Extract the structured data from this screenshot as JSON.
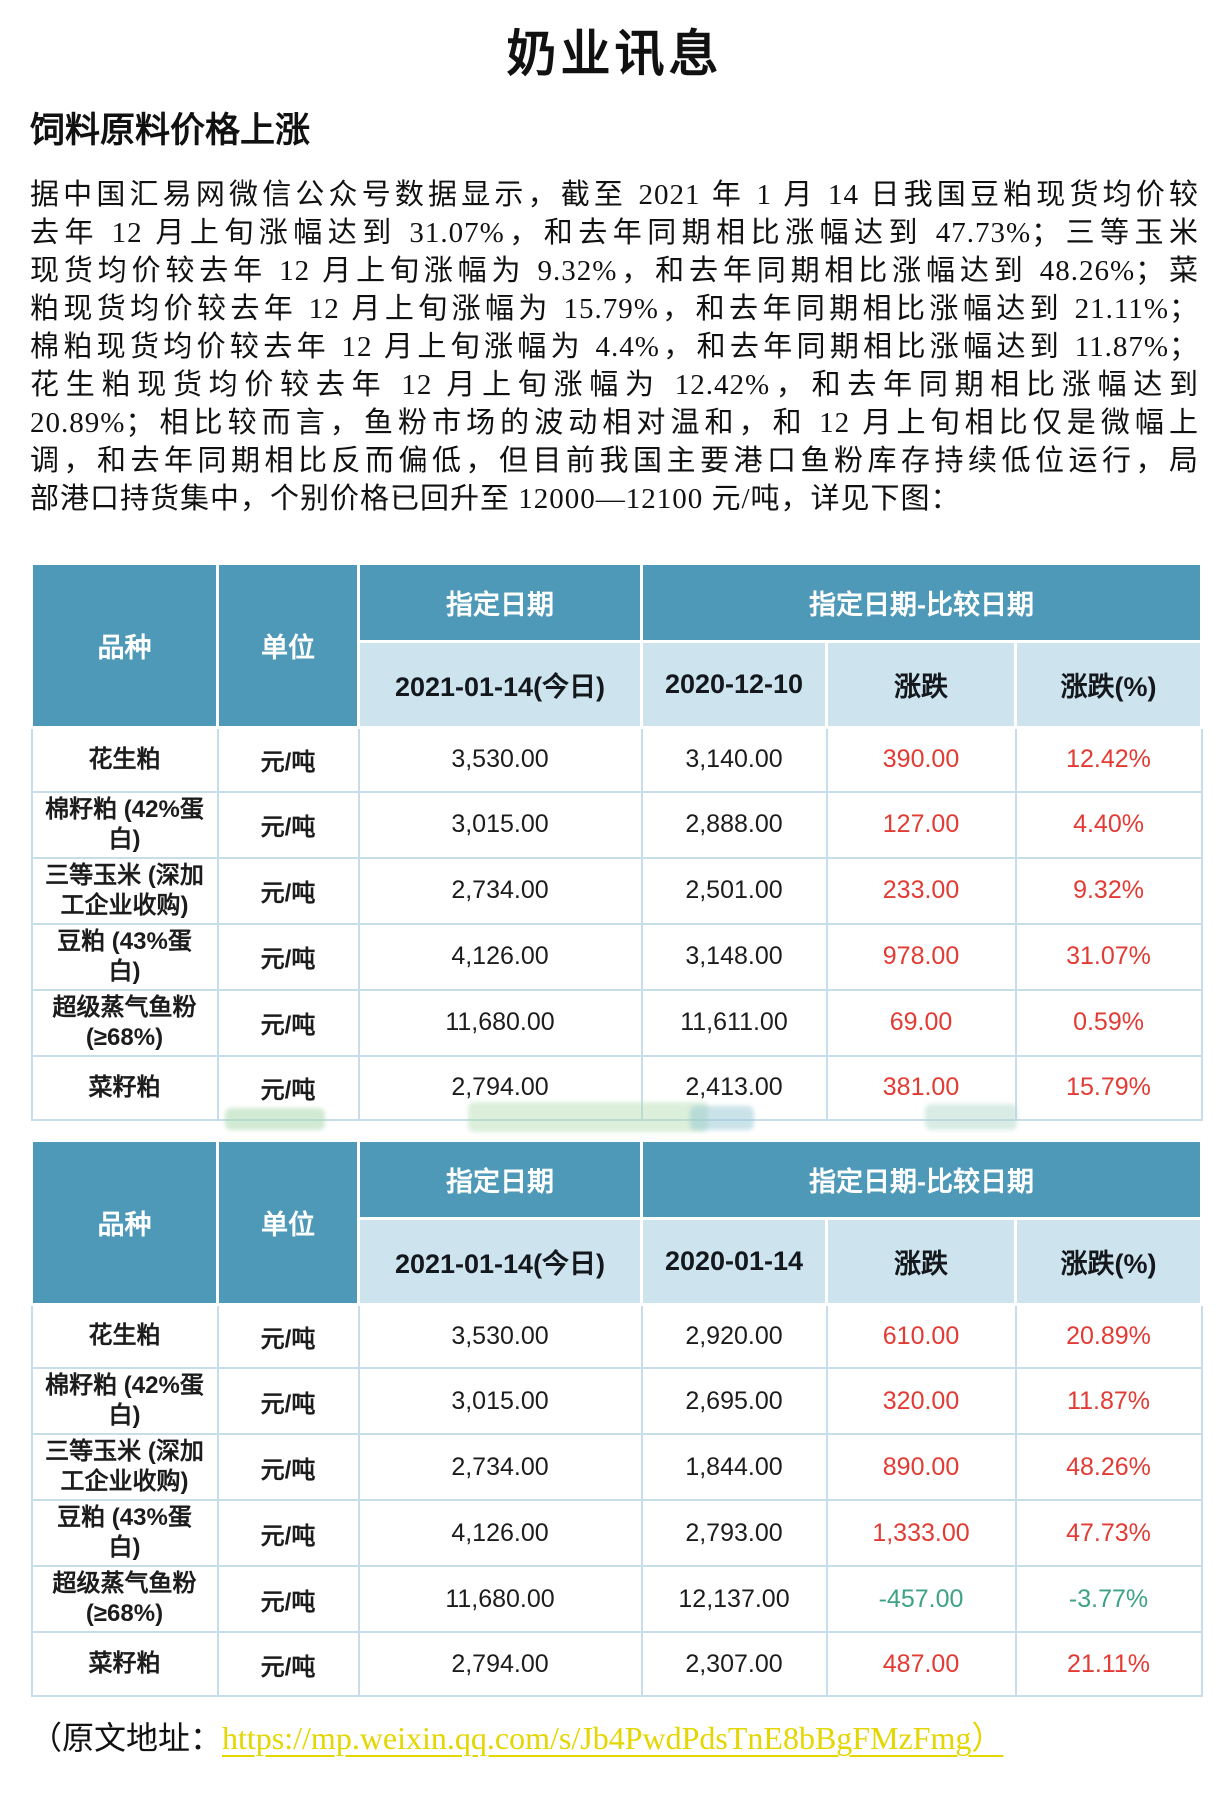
{
  "page": {
    "title": "奶业讯息",
    "section_heading": "饲料原料价格上涨"
  },
  "body": {
    "lines": [
      "据中国汇易网微信公众号数据显示，截至 2021 年 1 月 14 日我国豆粕现货均价较",
      "去年 12 月上旬涨幅达到 31.07%，和去年同期相比涨幅达到 47.73%；三等玉米",
      "现货均价较去年 12 月上旬涨幅为 9.32%，和去年同期相比涨幅达到 48.26%；菜",
      "粕现货均价较去年 12 月上旬涨幅为 15.79%，和去年同期相比涨幅达到 21.11%；",
      "棉粕现货均价较去年 12 月上旬涨幅为 4.4%，和去年同期相比涨幅达到 11.87%；",
      "花生粕现货均价较去年 12 月上旬涨幅为 12.42%，和去年同期相比涨幅达到",
      "20.89%；相比较而言，鱼粉市场的波动相对温和，和 12 月上旬相比仅是微幅上",
      "调，和去年同期相比反而偏低，但目前我国主要港口鱼粉库存持续低位运行，局",
      "部港口持货集中，个别价格已回升至 12000—12100 元/吨，详见下图："
    ]
  },
  "tables": [
    {
      "header": {
        "variety": "品种",
        "unit": "单位",
        "specified_date": "指定日期",
        "comparison_group": "指定日期-比较日期",
        "today_col": "2021-01-14(今日)",
        "compare_col": "2020-12-10",
        "change_col": "涨跌",
        "change_pct_col": "涨跌(%)"
      },
      "rows": [
        {
          "variety": "花生粕",
          "unit": "元/吨",
          "today": "3,530.00",
          "compare": "3,140.00",
          "change": "390.00",
          "change_pct": "12.42%",
          "direction": "up"
        },
        {
          "variety": "棉籽粕 (42%蛋白)",
          "unit": "元/吨",
          "today": "3,015.00",
          "compare": "2,888.00",
          "change": "127.00",
          "change_pct": "4.40%",
          "direction": "up"
        },
        {
          "variety": "三等玉米 (深加工企业收购)",
          "unit": "元/吨",
          "today": "2,734.00",
          "compare": "2,501.00",
          "change": "233.00",
          "change_pct": "9.32%",
          "direction": "up"
        },
        {
          "variety": "豆粕 (43%蛋白)",
          "unit": "元/吨",
          "today": "4,126.00",
          "compare": "3,148.00",
          "change": "978.00",
          "change_pct": "31.07%",
          "direction": "up"
        },
        {
          "variety": "超级蒸气鱼粉 (≥68%)",
          "unit": "元/吨",
          "today": "11,680.00",
          "compare": "11,611.00",
          "change": "69.00",
          "change_pct": "0.59%",
          "direction": "up"
        },
        {
          "variety": "菜籽粕",
          "unit": "元/吨",
          "today": "2,794.00",
          "compare": "2,413.00",
          "change": "381.00",
          "change_pct": "15.79%",
          "direction": "up"
        }
      ]
    },
    {
      "header": {
        "variety": "品种",
        "unit": "单位",
        "specified_date": "指定日期",
        "comparison_group": "指定日期-比较日期",
        "today_col": "2021-01-14(今日)",
        "compare_col": "2020-01-14",
        "change_col": "涨跌",
        "change_pct_col": "涨跌(%)"
      },
      "rows": [
        {
          "variety": "花生粕",
          "unit": "元/吨",
          "today": "3,530.00",
          "compare": "2,920.00",
          "change": "610.00",
          "change_pct": "20.89%",
          "direction": "up"
        },
        {
          "variety": "棉籽粕 (42%蛋白)",
          "unit": "元/吨",
          "today": "3,015.00",
          "compare": "2,695.00",
          "change": "320.00",
          "change_pct": "11.87%",
          "direction": "up"
        },
        {
          "variety": "三等玉米 (深加工企业收购)",
          "unit": "元/吨",
          "today": "2,734.00",
          "compare": "1,844.00",
          "change": "890.00",
          "change_pct": "48.26%",
          "direction": "up"
        },
        {
          "variety": "豆粕 (43%蛋白)",
          "unit": "元/吨",
          "today": "4,126.00",
          "compare": "2,793.00",
          "change": "1,333.00",
          "change_pct": "47.73%",
          "direction": "up"
        },
        {
          "variety": "超级蒸气鱼粉 (≥68%)",
          "unit": "元/吨",
          "today": "11,680.00",
          "compare": "12,137.00",
          "change": "-457.00",
          "change_pct": "-3.77%",
          "direction": "down"
        },
        {
          "variety": "菜籽粕",
          "unit": "元/吨",
          "today": "2,794.00",
          "compare": "2,307.00",
          "change": "487.00",
          "change_pct": "21.11%",
          "direction": "up"
        }
      ]
    }
  ],
  "footer": {
    "prefix": "（原文地址：",
    "url": "https://mp.weixin.qq.com/s/Jb4PwdPdsTnE8bBgFMzFmg",
    "suffix": "）"
  },
  "colors": {
    "header_teal": "#4D99B7",
    "subheader_blue": "#CDE4EF",
    "grid_blue": "#C7DEEA",
    "up_red": "#E23B34",
    "down_green": "#3EA287",
    "link_yellow": "#E4D600"
  }
}
